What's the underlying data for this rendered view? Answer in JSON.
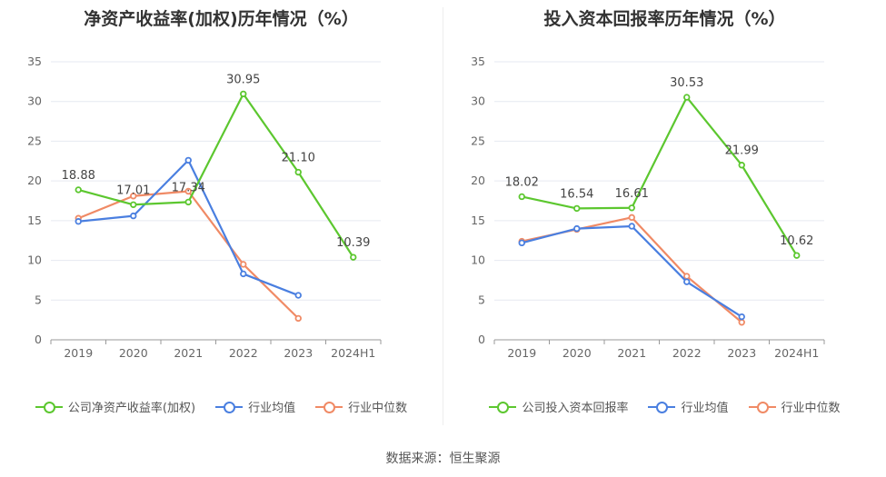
{
  "source": "数据来源：恒生聚源",
  "chart_data": [
    {
      "type": "line",
      "title": "净资产收益率(加权)历年情况（%）",
      "categories": [
        "2019",
        "2020",
        "2021",
        "2022",
        "2023",
        "2024H1"
      ],
      "ylim": [
        0,
        35
      ],
      "yticks": [
        0,
        5,
        10,
        15,
        20,
        25,
        30,
        35
      ],
      "grid": true,
      "legend": "bottom",
      "series": [
        {
          "name": "公司净资产收益率(加权)",
          "color": "#5cc72f",
          "values": [
            18.88,
            17.01,
            17.34,
            30.95,
            21.1,
            10.39
          ],
          "labels": [
            "18.88",
            "17.01",
            "17.34",
            "30.95",
            "21.10",
            "10.39"
          ]
        },
        {
          "name": "行业均值",
          "color": "#4a7fe0",
          "values": [
            14.9,
            15.6,
            22.6,
            8.3,
            5.6,
            null
          ]
        },
        {
          "name": "行业中位数",
          "color": "#f08a65",
          "values": [
            15.3,
            18.1,
            18.7,
            9.5,
            2.7,
            null
          ]
        }
      ]
    },
    {
      "type": "line",
      "title": "投入资本回报率历年情况（%）",
      "categories": [
        "2019",
        "2020",
        "2021",
        "2022",
        "2023",
        "2024H1"
      ],
      "ylim": [
        0,
        35
      ],
      "yticks": [
        0,
        5,
        10,
        15,
        20,
        25,
        30,
        35
      ],
      "grid": true,
      "legend": "bottom",
      "series": [
        {
          "name": "公司投入资本回报率",
          "color": "#5cc72f",
          "values": [
            18.02,
            16.54,
            16.61,
            30.53,
            21.99,
            10.62
          ],
          "labels": [
            "18.02",
            "16.54",
            "16.61",
            "30.53",
            "21.99",
            "10.62"
          ]
        },
        {
          "name": "行业均值",
          "color": "#4a7fe0",
          "values": [
            12.2,
            14.0,
            14.3,
            7.3,
            2.9,
            null
          ]
        },
        {
          "name": "行业中位数",
          "color": "#f08a65",
          "values": [
            12.4,
            13.9,
            15.4,
            8.0,
            2.2,
            null
          ]
        }
      ]
    }
  ]
}
